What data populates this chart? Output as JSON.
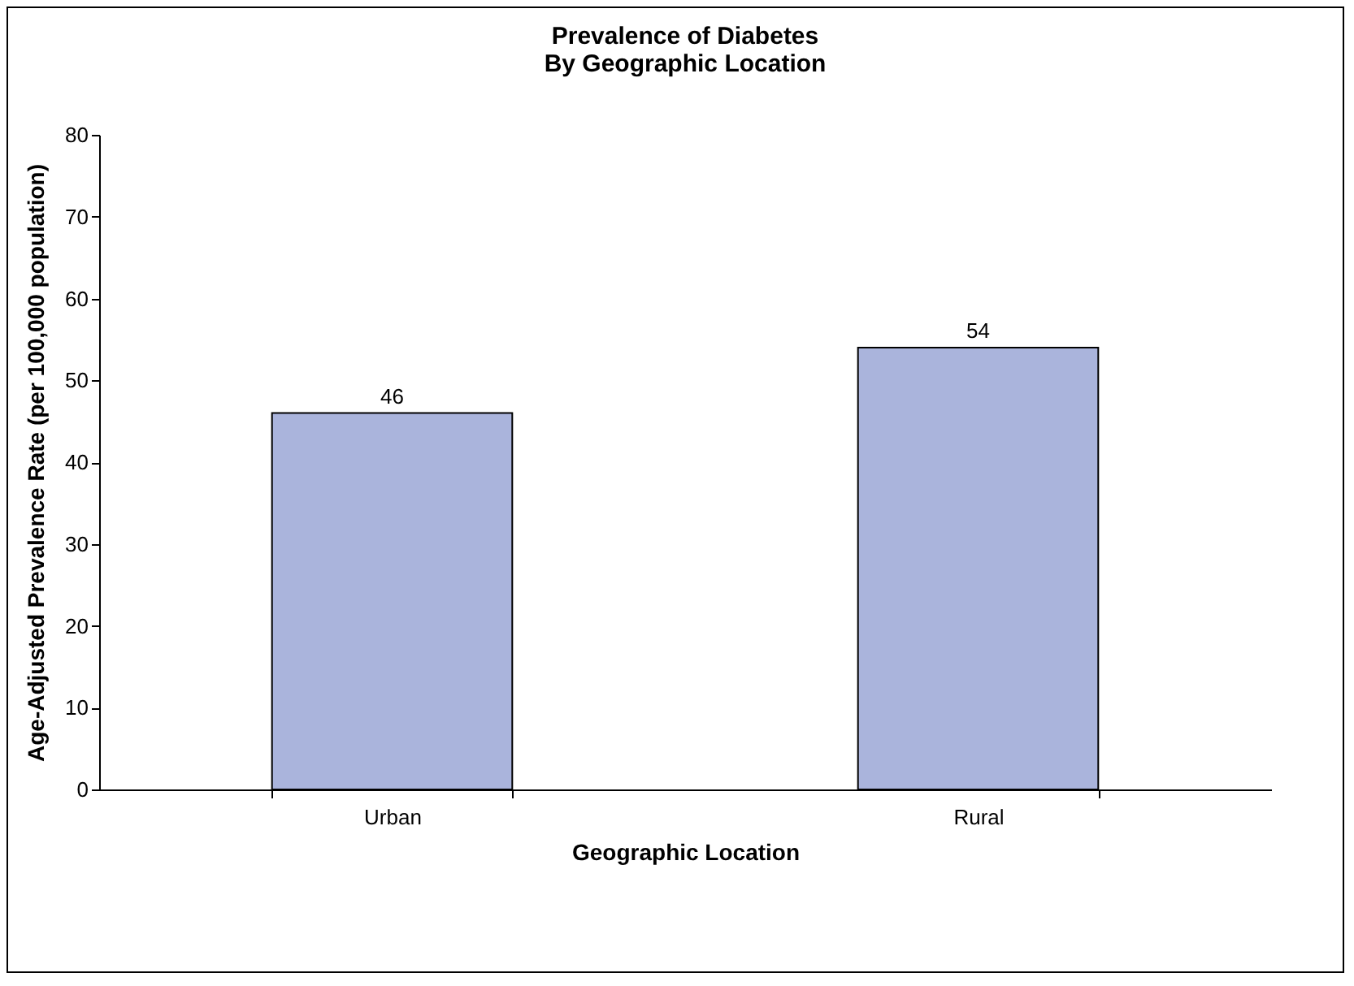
{
  "chart_data": {
    "type": "bar",
    "title": [
      "Prevalence of Diabetes",
      "By Geographic Location"
    ],
    "xlabel": "Geographic Location",
    "ylabel": "Age-Adjusted Prevalence Rate (per 100,000 population)",
    "categories": [
      "Urban",
      "Rural"
    ],
    "values": [
      46,
      54
    ],
    "color": "#aab4dc",
    "ylim": [
      0,
      80
    ],
    "yticks": [
      0,
      10,
      20,
      30,
      40,
      50,
      60,
      70,
      80
    ],
    "grid": false,
    "data_labels": true
  }
}
